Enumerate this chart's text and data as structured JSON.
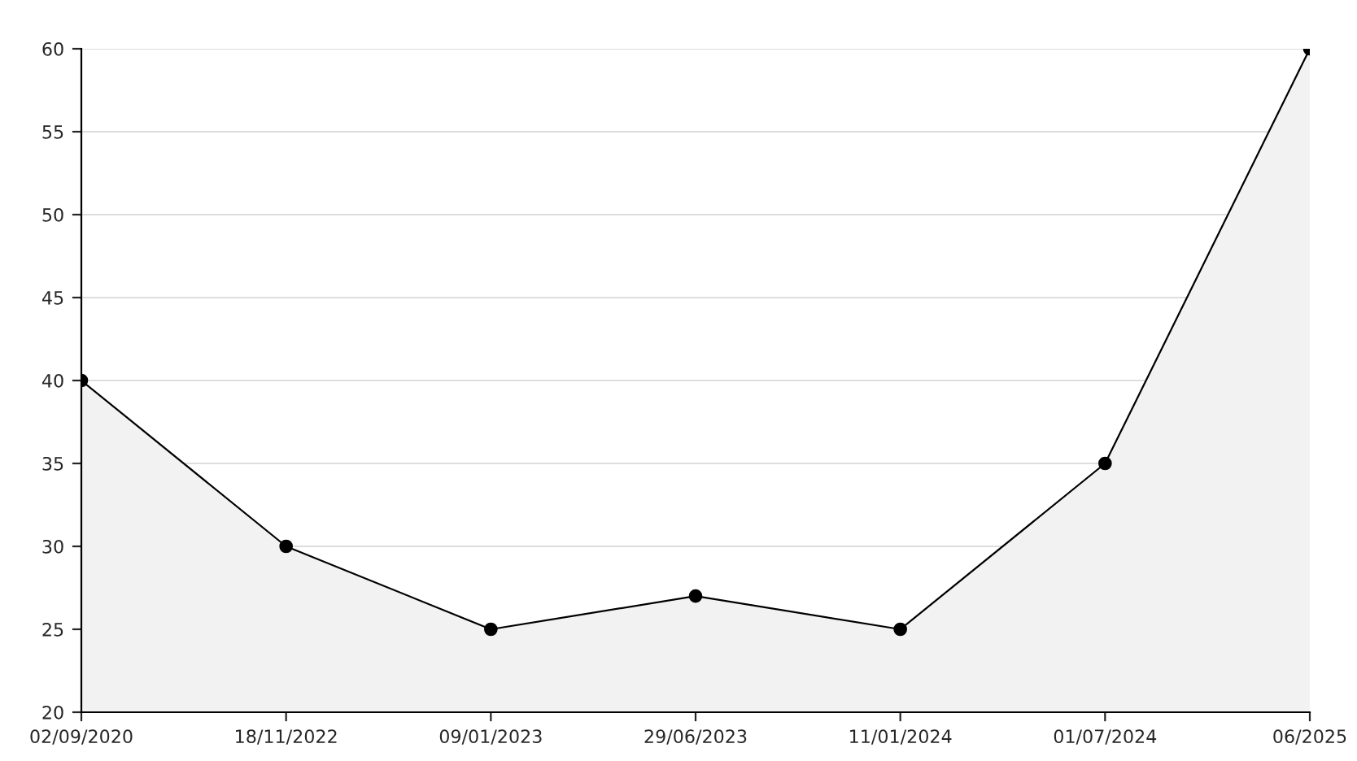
{
  "chart_data": {
    "type": "area",
    "categories": [
      "02/09/2020",
      "18/11/2022",
      "09/01/2023",
      "29/06/2023",
      "11/01/2024",
      "01/07/2024",
      "06/2025"
    ],
    "series": [
      {
        "color": "#000000",
        "values": [
          40,
          30,
          25,
          27,
          25,
          35,
          60
        ]
      }
    ],
    "ylim": [
      20,
      60
    ],
    "yticks": [
      20,
      25,
      30,
      35,
      40,
      45,
      50,
      55,
      60
    ],
    "grid": "y",
    "marker": "circle",
    "line_style": "solid"
  }
}
